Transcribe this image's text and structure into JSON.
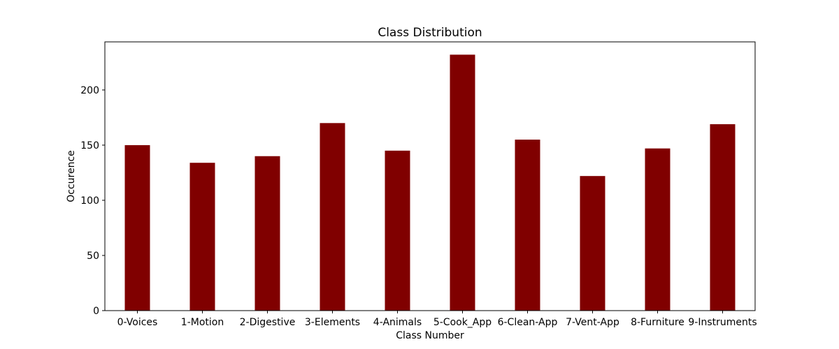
{
  "chart_data": {
    "type": "bar",
    "title": "Class Distribution",
    "xlabel": "Class Number",
    "ylabel": "Occurence",
    "categories": [
      "0-Voices",
      "1-Motion",
      "2-Digestive",
      "3-Elements",
      "4-Animals",
      "5-Cook_App",
      "6-Clean-App",
      "7-Vent-App",
      "8-Furniture",
      "9-Instruments"
    ],
    "values": [
      150,
      134,
      140,
      170,
      145,
      232,
      155,
      122,
      147,
      169
    ],
    "ylim": [
      0,
      243.6
    ],
    "yticks": [
      0,
      50,
      100,
      150,
      200
    ],
    "grid": false,
    "legend": "none",
    "bar_color": "#800000"
  }
}
